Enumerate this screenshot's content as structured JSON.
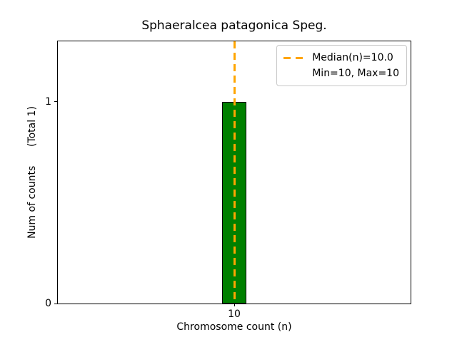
{
  "figure": {
    "background_color": "#ffffff",
    "text_color": "#000000"
  },
  "chart_data": {
    "type": "bar",
    "title": "Sphaeralcea patagonica Speg.",
    "xlabel": "Chromosome count (n)",
    "ylabel": "Num of counts      (Total 1)",
    "x": [
      10
    ],
    "values": [
      1
    ],
    "bar_width": 0.14,
    "bar_color": "#008000",
    "bar_edge_color": "#000000",
    "xlim": [
      9,
      11
    ],
    "ylim": [
      0,
      1.3
    ],
    "xticks": [
      {
        "value": 10,
        "label": "10"
      }
    ],
    "yticks": [
      {
        "value": 0,
        "label": "0"
      },
      {
        "value": 1,
        "label": "1"
      }
    ],
    "grid": false,
    "median_line": {
      "x": 10,
      "color": "#FFA500",
      "style": "dashed"
    },
    "legend": {
      "position": "upper-right",
      "entries": [
        {
          "label": "Median(n)=10.0",
          "swatch": "dashed-line",
          "color": "#FFA500"
        },
        {
          "label": "Min=10, Max=10",
          "swatch": "none",
          "color": ""
        }
      ]
    },
    "total_counts": 1,
    "min": 10,
    "max": 10,
    "median": 10.0
  }
}
